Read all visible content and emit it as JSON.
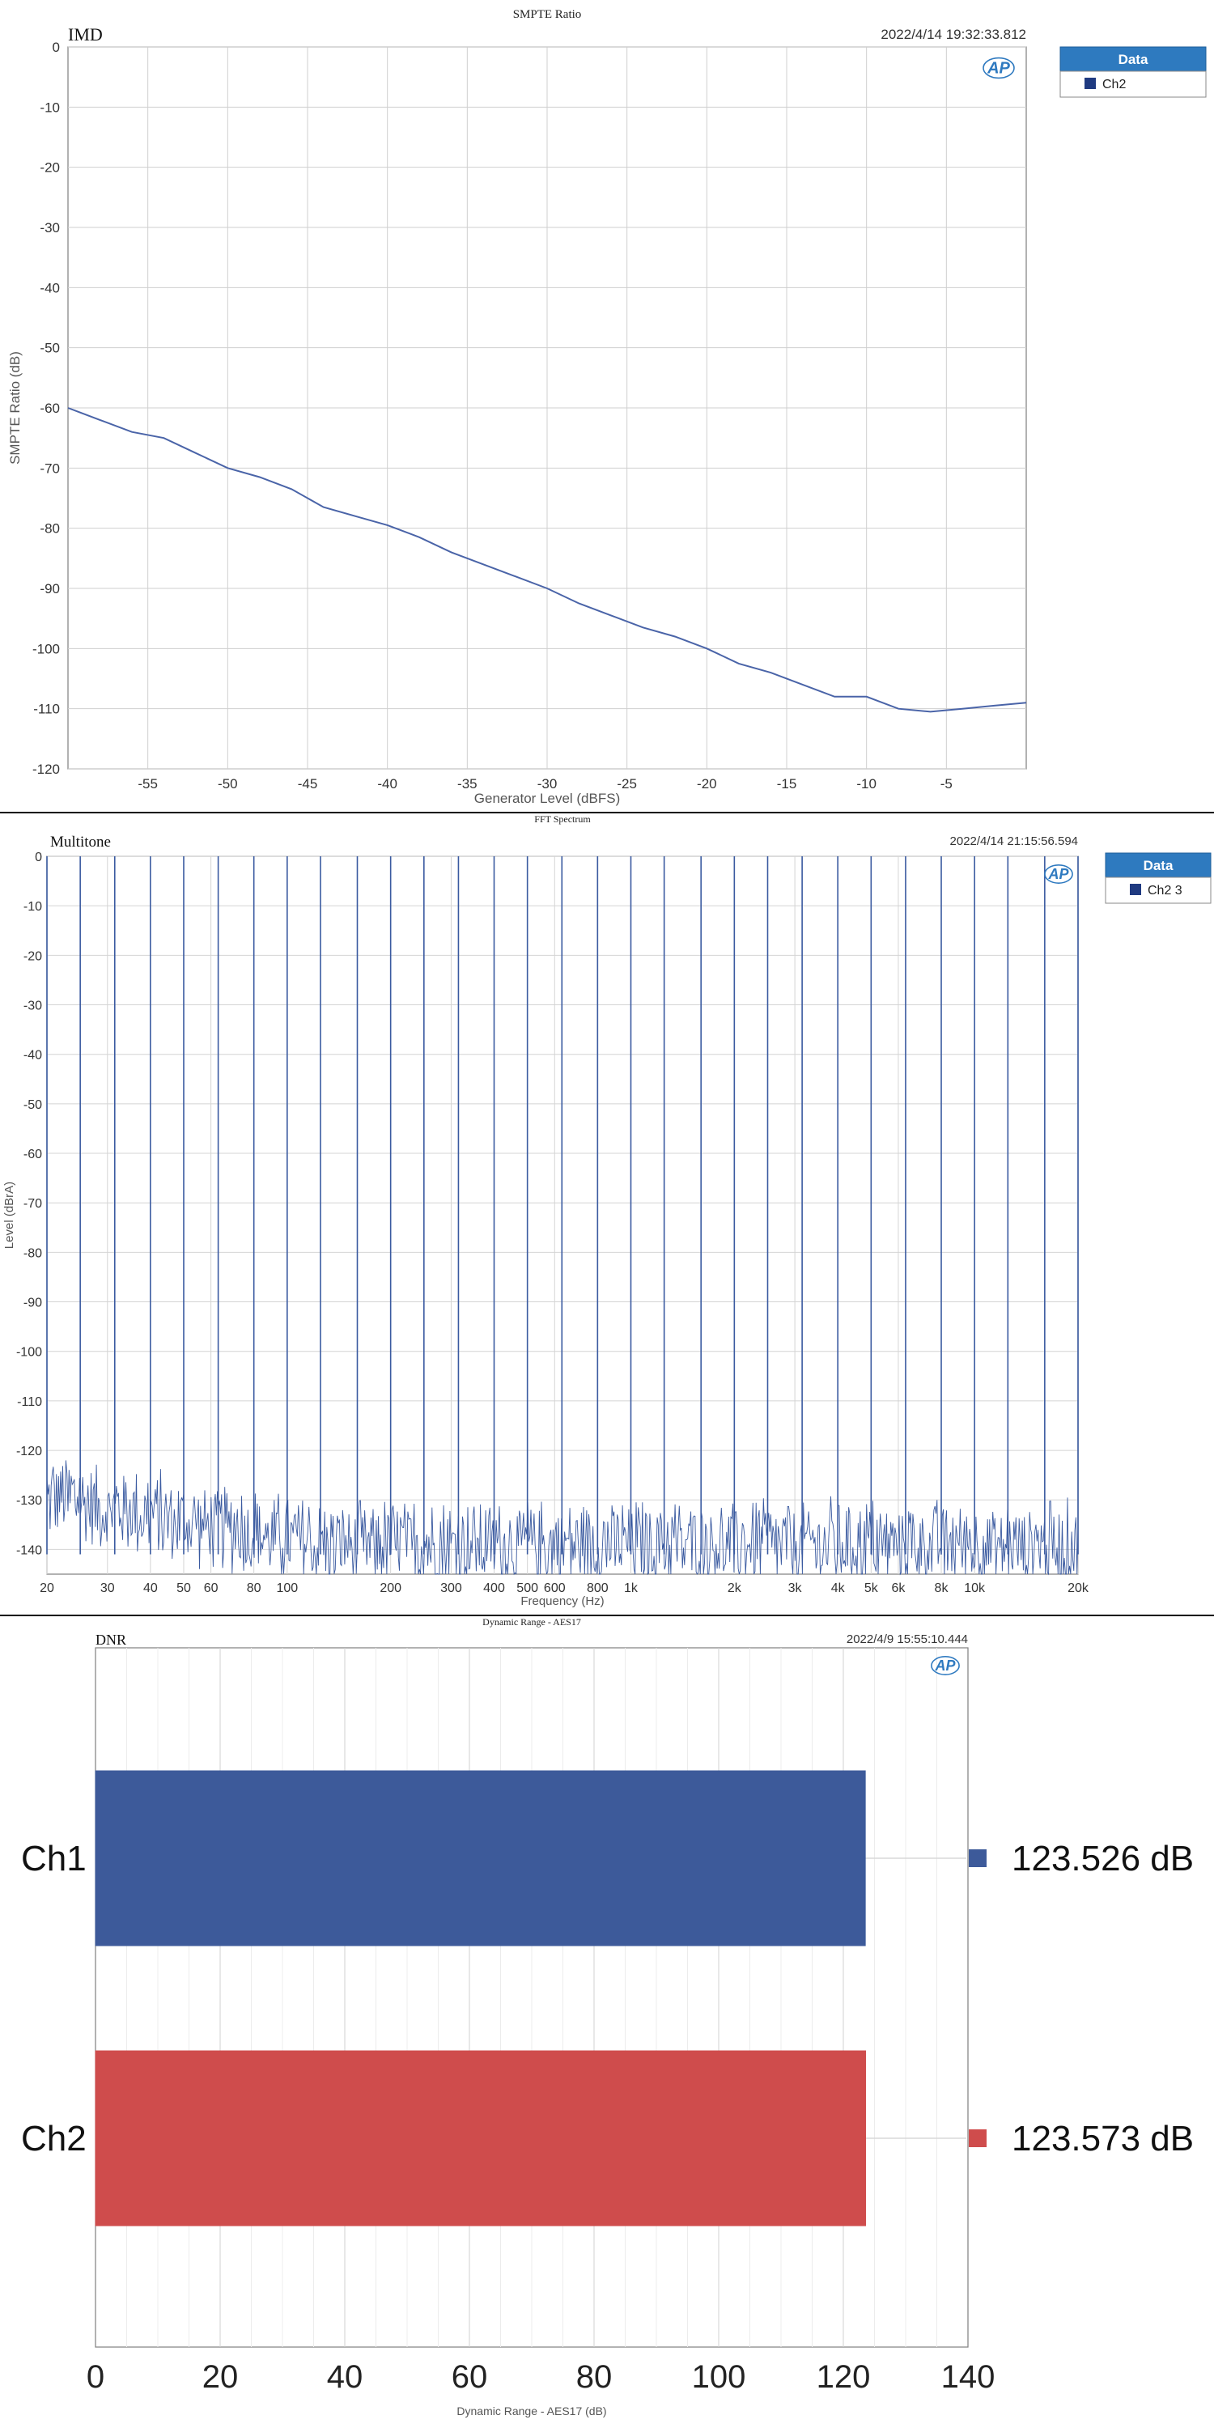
{
  "chart_data": [
    {
      "type": "line",
      "title": "SMPTE Ratio",
      "tag": "IMD",
      "timestamp": "2022/4/14 19:32:33.812",
      "logo": "AP",
      "xlabel": "Generator Level (dBFS)",
      "ylabel": "SMPTE Ratio (dB)",
      "xlim": [
        -60,
        0
      ],
      "ylim": [
        -120,
        0
      ],
      "xticks": [
        -55,
        -50,
        -45,
        -40,
        -35,
        -30,
        -25,
        -20,
        -15,
        -10,
        -5
      ],
      "yticks": [
        0,
        -10,
        -20,
        -30,
        -40,
        -50,
        -60,
        -70,
        -80,
        -90,
        -100,
        -110,
        -120
      ],
      "grid": true,
      "legend": {
        "title": "Data",
        "placement": "top-right-outside",
        "entries": [
          "Ch2"
        ]
      },
      "series": [
        {
          "name": "Ch2",
          "color": "#4a64a8",
          "x": [
            -60,
            -58,
            -56,
            -54,
            -52,
            -50,
            -48,
            -46,
            -44,
            -42,
            -40,
            -38,
            -36,
            -34,
            -32,
            -30,
            -28,
            -26,
            -24,
            -22,
            -20,
            -18,
            -16,
            -14,
            -12,
            -10,
            -8,
            -6,
            -4,
            -2,
            0
          ],
          "y": [
            -60,
            -62,
            -64,
            -65,
            -67.5,
            -70,
            -71.5,
            -73.5,
            -76.5,
            -78,
            -79.5,
            -81.5,
            -84,
            -86,
            -88,
            -90,
            -92.5,
            -94.5,
            -96.5,
            -98,
            -100,
            -102.5,
            -104,
            -106,
            -108,
            -108,
            -110,
            -110.5,
            -110,
            -109.5,
            -109
          ]
        }
      ]
    },
    {
      "type": "line",
      "title": "FFT Spectrum",
      "tag": "Multitone",
      "timestamp": "2022/4/14 21:15:56.594",
      "logo": "AP",
      "xlabel": "Frequency (Hz)",
      "ylabel": "Level (dBrA)",
      "xscale": "log",
      "xlim": [
        20,
        20000
      ],
      "ylim": [
        -145,
        0
      ],
      "xticks": [
        20,
        30,
        40,
        50,
        60,
        80,
        100,
        200,
        300,
        400,
        500,
        600,
        800,
        1000,
        2000,
        3000,
        4000,
        5000,
        6000,
        8000,
        10000,
        20000
      ],
      "xtick_labels": [
        "20",
        "30",
        "40",
        "50",
        "60",
        "80",
        "100",
        "200",
        "300",
        "400",
        "500",
        "600",
        "800",
        "1k",
        "2k",
        "3k",
        "4k",
        "5k",
        "6k",
        "8k",
        "10k",
        "20k"
      ],
      "yticks": [
        0,
        -10,
        -20,
        -30,
        -40,
        -50,
        -60,
        -70,
        -80,
        -90,
        -100,
        -110,
        -120,
        -130,
        -140
      ],
      "grid": true,
      "legend": {
        "title": "Data",
        "placement": "top-right-outside",
        "entries": [
          "Ch2 3"
        ]
      },
      "series": [
        {
          "name": "Ch2 3",
          "color": "#3a5aa0",
          "tone_frequencies_hz": [
            20,
            25,
            31.5,
            40,
            50,
            63,
            80,
            100,
            125,
            160,
            200,
            250,
            315,
            400,
            500,
            630,
            800,
            1000,
            1250,
            1600,
            2000,
            2500,
            3150,
            4000,
            5000,
            6300,
            8000,
            10000,
            12500,
            16000,
            20000
          ],
          "tone_level_db": 0,
          "noise_floor_db": -137,
          "low_freq_noise_db": -127
        }
      ]
    },
    {
      "type": "bar",
      "orientation": "horizontal",
      "title": "Dynamic Range - AES17",
      "tag": "DNR",
      "timestamp": "2022/4/9 15:55:10.444",
      "logo": "AP",
      "xlabel": "Dynamic Range - AES17 (dB)",
      "xlim": [
        0,
        140
      ],
      "xticks": [
        0,
        20,
        40,
        60,
        80,
        100,
        120,
        140
      ],
      "grid": true,
      "categories": [
        "Ch1",
        "Ch2"
      ],
      "values": [
        123.526,
        123.573
      ],
      "value_labels": [
        "123.526 dB",
        "123.573 dB"
      ],
      "colors": [
        "#3d5a9a",
        "#cf4c4c"
      ]
    }
  ]
}
